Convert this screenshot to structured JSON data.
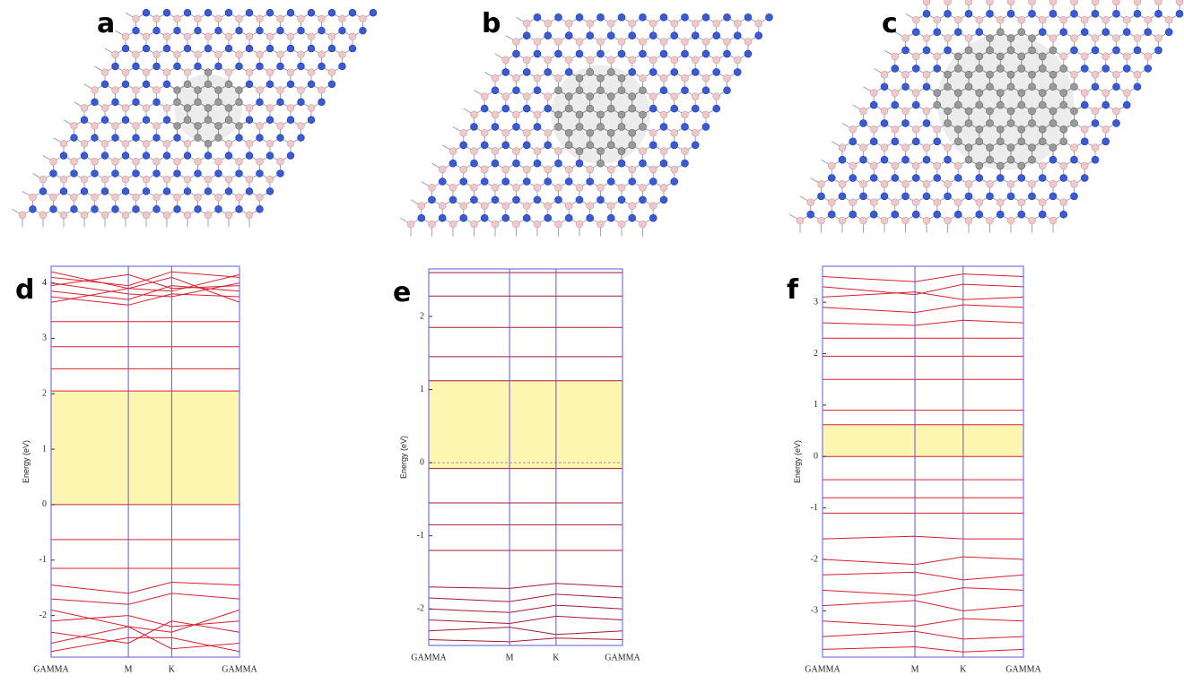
{
  "structure_labels": [
    "a",
    "b",
    "c"
  ],
  "chart_data": [
    {
      "type": "line",
      "panel_label": "d",
      "ylabel": "Energy (eV)",
      "color": "#d8202a",
      "x": [
        0,
        0.41,
        0.64,
        1
      ],
      "xticks": [
        {
          "value": 0,
          "label": "GAMMA"
        },
        {
          "value": 0.41,
          "label": "M"
        },
        {
          "value": 0.64,
          "label": "K"
        },
        {
          "value": 1,
          "label": "GAMMA"
        }
      ],
      "ylim": [
        -2.75,
        4.3
      ],
      "yticks": [
        -2,
        -1,
        0,
        1,
        2,
        3,
        4
      ],
      "band_gap": [
        0,
        2.05
      ],
      "series": [
        {
          "values": [
            2.05,
            2.05,
            2.05,
            2.05
          ]
        },
        {
          "values": [
            2.45,
            2.45,
            2.45,
            2.45
          ]
        },
        {
          "values": [
            2.85,
            2.85,
            2.85,
            2.85
          ]
        },
        {
          "values": [
            3.3,
            3.3,
            3.3,
            3.3
          ]
        },
        {
          "values": [
            3.75,
            3.6,
            3.8,
            3.75
          ]
        },
        {
          "values": [
            3.85,
            3.7,
            3.95,
            3.85
          ]
        },
        {
          "values": [
            4.0,
            3.8,
            3.75,
            4.0
          ]
        },
        {
          "values": [
            4.2,
            3.9,
            3.85,
            4.15
          ]
        },
        {
          "values": [
            3.65,
            3.9,
            4.1,
            3.65
          ]
        },
        {
          "values": [
            3.95,
            4.15,
            3.9,
            3.95
          ]
        },
        {
          "values": [
            4.1,
            3.95,
            4.2,
            4.1
          ]
        },
        {
          "values": [
            0,
            0,
            0,
            0
          ]
        },
        {
          "values": [
            -0.63,
            -0.63,
            -0.63,
            -0.63
          ]
        },
        {
          "values": [
            -1.15,
            -1.15,
            -1.15,
            -1.15
          ]
        },
        {
          "values": [
            -1.45,
            -1.6,
            -1.4,
            -1.45
          ]
        },
        {
          "values": [
            -1.7,
            -1.8,
            -1.6,
            -1.7
          ]
        },
        {
          "values": [
            -1.9,
            -2.2,
            -2.3,
            -1.9
          ]
        },
        {
          "values": [
            -2.1,
            -2.0,
            -2.2,
            -2.1
          ]
        },
        {
          "values": [
            -2.3,
            -2.5,
            -2.1,
            -2.3
          ]
        },
        {
          "values": [
            -2.5,
            -2.2,
            -2.6,
            -2.5
          ]
        },
        {
          "values": [
            -2.65,
            -2.4,
            -2.4,
            -2.65
          ]
        }
      ]
    },
    {
      "type": "line",
      "panel_label": "e",
      "ylabel": "Energy (eV)",
      "color": "#a8182e",
      "x": [
        0,
        0.417,
        0.657,
        1
      ],
      "xticks": [
        {
          "value": 0,
          "label": "GAMMA"
        },
        {
          "value": 0.417,
          "label": "M"
        },
        {
          "value": 0.657,
          "label": "K"
        },
        {
          "value": 1,
          "label": "GAMMA"
        }
      ],
      "ylim": [
        -2.5,
        2.65
      ],
      "yticks": [
        -2,
        -1,
        0,
        1,
        2
      ],
      "band_gap": [
        -0.08,
        1.12
      ],
      "fermi_level": 0,
      "series": [
        {
          "values": [
            2.6,
            2.6,
            2.6,
            2.6
          ]
        },
        {
          "values": [
            2.28,
            2.28,
            2.28,
            2.28
          ]
        },
        {
          "values": [
            1.85,
            1.85,
            1.85,
            1.85
          ]
        },
        {
          "values": [
            1.45,
            1.45,
            1.45,
            1.45
          ]
        },
        {
          "values": [
            1.12,
            1.12,
            1.12,
            1.12
          ]
        },
        {
          "values": [
            -0.08,
            -0.08,
            -0.08,
            -0.08
          ]
        },
        {
          "values": [
            -0.55,
            -0.55,
            -0.55,
            -0.55
          ]
        },
        {
          "values": [
            -0.85,
            -0.85,
            -0.85,
            -0.85
          ]
        },
        {
          "values": [
            -1.2,
            -1.2,
            -1.2,
            -1.2
          ]
        },
        {
          "values": [
            -1.7,
            -1.72,
            -1.65,
            -1.7
          ]
        },
        {
          "values": [
            -1.85,
            -1.9,
            -1.8,
            -1.85
          ]
        },
        {
          "values": [
            -2.0,
            -2.05,
            -1.95,
            -2.0
          ]
        },
        {
          "values": [
            -2.15,
            -2.2,
            -2.1,
            -2.15
          ]
        },
        {
          "values": [
            -2.3,
            -2.25,
            -2.35,
            -2.3
          ]
        },
        {
          "values": [
            -2.42,
            -2.45,
            -2.4,
            -2.42
          ]
        }
      ]
    },
    {
      "type": "line",
      "panel_label": "f",
      "ylabel": "Energy (eV)",
      "color": "#d8202a",
      "x": [
        0,
        0.46,
        0.7,
        1
      ],
      "xticks": [
        {
          "value": 0,
          "label": "GAMMA"
        },
        {
          "value": 0.46,
          "label": "M"
        },
        {
          "value": 0.7,
          "label": "K"
        },
        {
          "value": 1,
          "label": "GAMMA"
        }
      ],
      "ylim": [
        -3.9,
        3.7
      ],
      "yticks": [
        -3,
        -2,
        -1,
        0,
        1,
        2,
        3
      ],
      "band_gap": [
        0,
        0.62
      ],
      "series": [
        {
          "values": [
            0.62,
            0.62,
            0.62,
            0.62
          ]
        },
        {
          "values": [
            0.9,
            0.9,
            0.9,
            0.9
          ]
        },
        {
          "values": [
            1.5,
            1.5,
            1.5,
            1.5
          ]
        },
        {
          "values": [
            1.95,
            1.95,
            1.95,
            1.95
          ]
        },
        {
          "values": [
            2.3,
            2.3,
            2.3,
            2.3
          ]
        },
        {
          "values": [
            2.6,
            2.55,
            2.65,
            2.6
          ]
        },
        {
          "values": [
            2.9,
            2.8,
            2.95,
            2.9
          ]
        },
        {
          "values": [
            3.1,
            3.2,
            3.05,
            3.1
          ]
        },
        {
          "values": [
            3.3,
            3.15,
            3.35,
            3.3
          ]
        },
        {
          "values": [
            3.5,
            3.4,
            3.55,
            3.5
          ]
        },
        {
          "values": [
            0,
            0,
            0,
            0
          ]
        },
        {
          "values": [
            -0.45,
            -0.45,
            -0.45,
            -0.45
          ]
        },
        {
          "values": [
            -0.8,
            -0.8,
            -0.8,
            -0.8
          ]
        },
        {
          "values": [
            -1.1,
            -1.1,
            -1.1,
            -1.1
          ]
        },
        {
          "values": [
            -1.6,
            -1.55,
            -1.6,
            -1.6
          ]
        },
        {
          "values": [
            -2.0,
            -2.1,
            -1.95,
            -2.0
          ]
        },
        {
          "values": [
            -2.3,
            -2.25,
            -2.4,
            -2.3
          ]
        },
        {
          "values": [
            -2.6,
            -2.7,
            -2.55,
            -2.6
          ]
        },
        {
          "values": [
            -2.9,
            -2.8,
            -3.0,
            -2.9
          ]
        },
        {
          "values": [
            -3.2,
            -3.3,
            -3.15,
            -3.2
          ]
        },
        {
          "values": [
            -3.5,
            -3.4,
            -3.55,
            -3.5
          ]
        },
        {
          "values": [
            -3.75,
            -3.7,
            -3.8,
            -3.75
          ]
        }
      ]
    }
  ]
}
